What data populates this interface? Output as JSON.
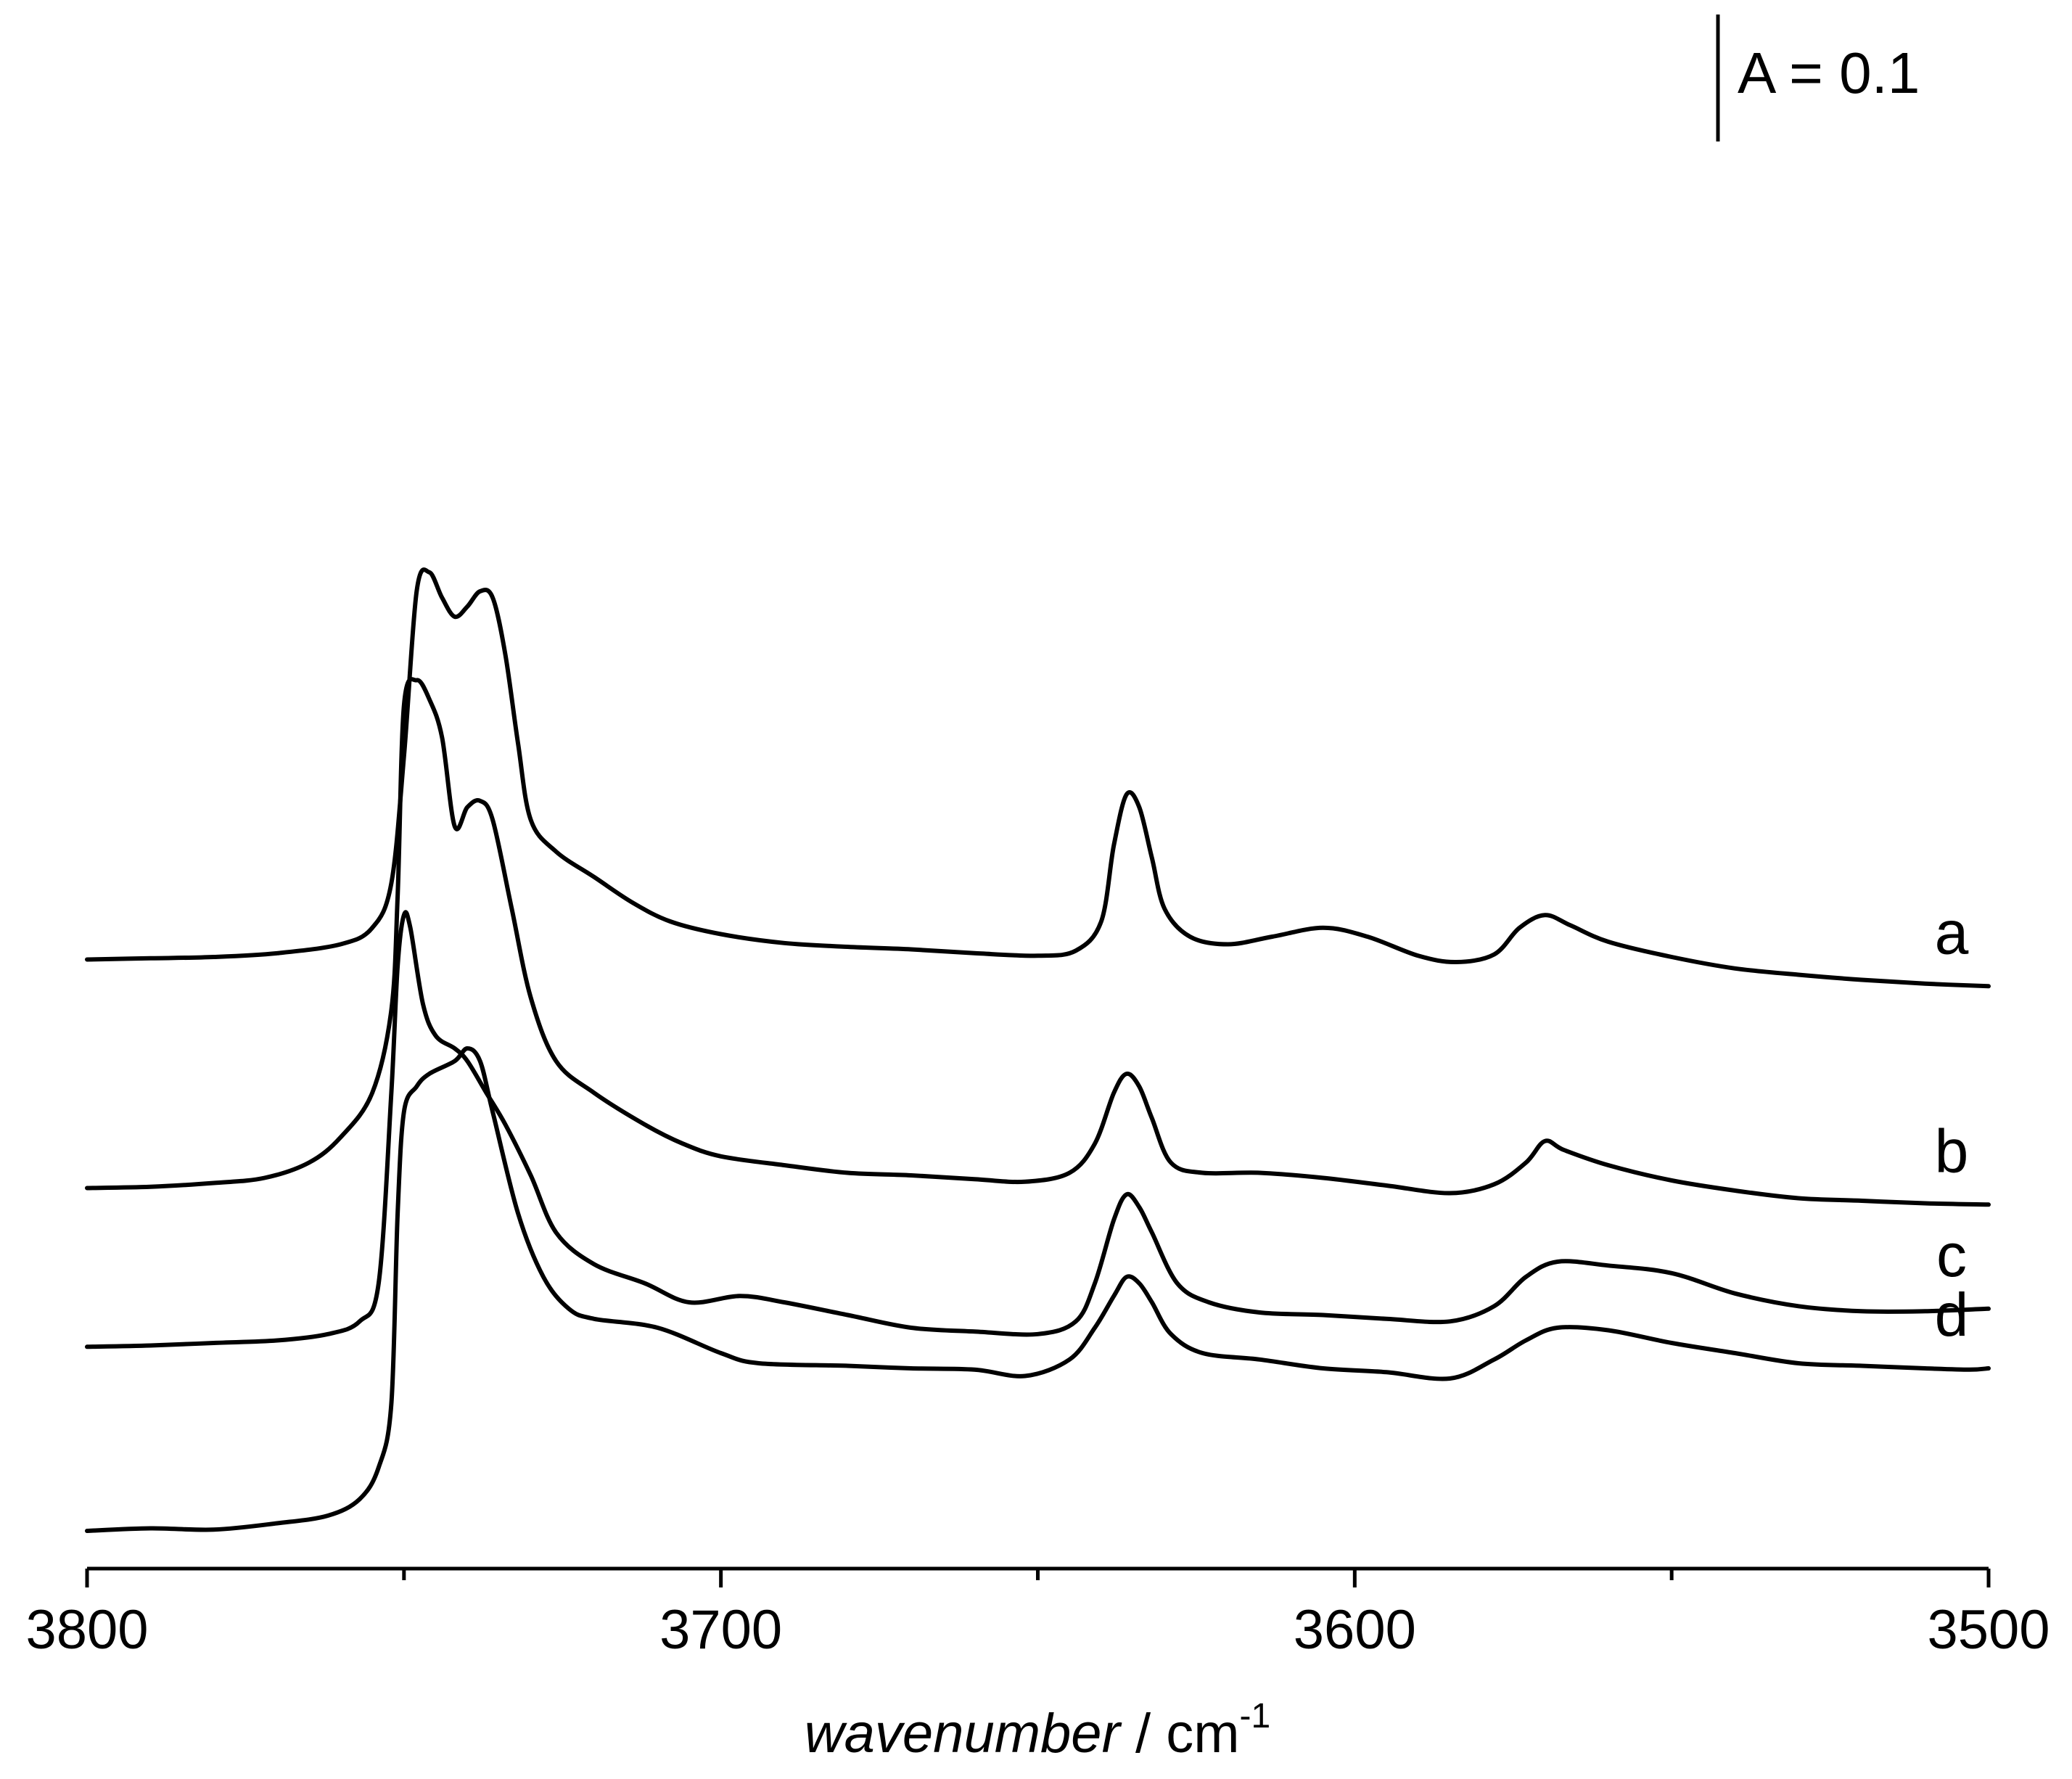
{
  "chart_data": {
    "type": "line",
    "title": "",
    "xlabel_italic": "wavenumber",
    "xlabel_unit": " / cm",
    "xlabel_sup": "-1",
    "ylabel": "",
    "xlim": [
      3800,
      3500
    ],
    "x_reversed": true,
    "x_ticks_major": [
      3800,
      3700,
      3600,
      3500
    ],
    "x_ticks_major_labels": [
      "3800",
      "3700",
      "3600",
      "3500"
    ],
    "x_ticks_minor": [
      3750,
      3650,
      3550
    ],
    "grid": false,
    "scale_bar": {
      "label": "A = 0.1",
      "absorbance": 0.1
    },
    "y_units_note": "absorbance, stacked with offsets",
    "series": [
      {
        "name": "a",
        "offset": 0.45,
        "points": [
          [
            3800,
            0.0
          ],
          [
            3790,
            0.001
          ],
          [
            3780,
            0.002
          ],
          [
            3770,
            0.005
          ],
          [
            3760,
            0.012
          ],
          [
            3755,
            0.025
          ],
          [
            3752,
            0.06
          ],
          [
            3750,
            0.16
          ],
          [
            3748,
            0.29
          ],
          [
            3746,
            0.305
          ],
          [
            3744,
            0.285
          ],
          [
            3742,
            0.27
          ],
          [
            3740,
            0.278
          ],
          [
            3738,
            0.29
          ],
          [
            3736,
            0.285
          ],
          [
            3734,
            0.24
          ],
          [
            3732,
            0.17
          ],
          [
            3730,
            0.11
          ],
          [
            3726,
            0.085
          ],
          [
            3720,
            0.065
          ],
          [
            3714,
            0.045
          ],
          [
            3708,
            0.03
          ],
          [
            3700,
            0.02
          ],
          [
            3690,
            0.013
          ],
          [
            3680,
            0.01
          ],
          [
            3670,
            0.008
          ],
          [
            3660,
            0.005
          ],
          [
            3650,
            0.003
          ],
          [
            3644,
            0.007
          ],
          [
            3640,
            0.03
          ],
          [
            3638,
            0.09
          ],
          [
            3636,
            0.13
          ],
          [
            3634,
            0.12
          ],
          [
            3632,
            0.08
          ],
          [
            3630,
            0.04
          ],
          [
            3626,
            0.018
          ],
          [
            3620,
            0.012
          ],
          [
            3613,
            0.018
          ],
          [
            3605,
            0.025
          ],
          [
            3598,
            0.018
          ],
          [
            3590,
            0.003
          ],
          [
            3584,
            -0.002
          ],
          [
            3578,
            0.004
          ],
          [
            3574,
            0.025
          ],
          [
            3570,
            0.035
          ],
          [
            3566,
            0.027
          ],
          [
            3560,
            0.014
          ],
          [
            3550,
            0.002
          ],
          [
            3540,
            -0.007
          ],
          [
            3530,
            -0.012
          ],
          [
            3520,
            -0.016
          ],
          [
            3510,
            -0.019
          ],
          [
            3500,
            -0.021
          ]
        ]
      },
      {
        "name": "b",
        "offset": 0.27,
        "points": [
          [
            3800,
            0.0
          ],
          [
            3790,
            0.001
          ],
          [
            3780,
            0.004
          ],
          [
            3772,
            0.008
          ],
          [
            3765,
            0.02
          ],
          [
            3760,
            0.04
          ],
          [
            3755,
            0.075
          ],
          [
            3752,
            0.14
          ],
          [
            3751,
            0.23
          ],
          [
            3750,
            0.38
          ],
          [
            3748,
            0.4
          ],
          [
            3746,
            0.385
          ],
          [
            3744,
            0.355
          ],
          [
            3742,
            0.285
          ],
          [
            3740,
            0.3
          ],
          [
            3738,
            0.305
          ],
          [
            3736,
            0.29
          ],
          [
            3733,
            0.22
          ],
          [
            3730,
            0.15
          ],
          [
            3726,
            0.1
          ],
          [
            3720,
            0.075
          ],
          [
            3712,
            0.05
          ],
          [
            3706,
            0.035
          ],
          [
            3700,
            0.025
          ],
          [
            3690,
            0.018
          ],
          [
            3680,
            0.012
          ],
          [
            3670,
            0.01
          ],
          [
            3660,
            0.007
          ],
          [
            3652,
            0.005
          ],
          [
            3645,
            0.012
          ],
          [
            3641,
            0.035
          ],
          [
            3638,
            0.075
          ],
          [
            3636,
            0.09
          ],
          [
            3634,
            0.08
          ],
          [
            3632,
            0.055
          ],
          [
            3629,
            0.02
          ],
          [
            3624,
            0.012
          ],
          [
            3615,
            0.012
          ],
          [
            3605,
            0.008
          ],
          [
            3595,
            0.002
          ],
          [
            3585,
            -0.004
          ],
          [
            3578,
            0.003
          ],
          [
            3573,
            0.02
          ],
          [
            3570,
            0.037
          ],
          [
            3567,
            0.03
          ],
          [
            3560,
            0.018
          ],
          [
            3550,
            0.006
          ],
          [
            3540,
            -0.002
          ],
          [
            3530,
            -0.008
          ],
          [
            3520,
            -0.01
          ],
          [
            3510,
            -0.012
          ],
          [
            3500,
            -0.013
          ]
        ]
      },
      {
        "name": "c",
        "offset": 0.145,
        "points": [
          [
            3800,
            0.0
          ],
          [
            3790,
            0.001
          ],
          [
            3780,
            0.003
          ],
          [
            3770,
            0.005
          ],
          [
            3762,
            0.01
          ],
          [
            3757,
            0.02
          ],
          [
            3754,
            0.05
          ],
          [
            3752,
            0.2
          ],
          [
            3751,
            0.3
          ],
          [
            3750,
            0.34
          ],
          [
            3749,
            0.33
          ],
          [
            3747,
            0.27
          ],
          [
            3745,
            0.245
          ],
          [
            3742,
            0.235
          ],
          [
            3740,
            0.225
          ],
          [
            3737,
            0.2
          ],
          [
            3734,
            0.175
          ],
          [
            3730,
            0.135
          ],
          [
            3726,
            0.09
          ],
          [
            3720,
            0.065
          ],
          [
            3712,
            0.05
          ],
          [
            3705,
            0.035
          ],
          [
            3697,
            0.04
          ],
          [
            3690,
            0.035
          ],
          [
            3680,
            0.025
          ],
          [
            3670,
            0.015
          ],
          [
            3660,
            0.012
          ],
          [
            3650,
            0.01
          ],
          [
            3644,
            0.02
          ],
          [
            3641,
            0.05
          ],
          [
            3638,
            0.1
          ],
          [
            3636,
            0.12
          ],
          [
            3634,
            0.11
          ],
          [
            3632,
            0.09
          ],
          [
            3628,
            0.05
          ],
          [
            3623,
            0.035
          ],
          [
            3615,
            0.027
          ],
          [
            3605,
            0.025
          ],
          [
            3595,
            0.022
          ],
          [
            3585,
            0.02
          ],
          [
            3578,
            0.032
          ],
          [
            3573,
            0.055
          ],
          [
            3568,
            0.067
          ],
          [
            3560,
            0.064
          ],
          [
            3550,
            0.058
          ],
          [
            3540,
            0.042
          ],
          [
            3530,
            0.032
          ],
          [
            3520,
            0.028
          ],
          [
            3510,
            0.028
          ],
          [
            3500,
            0.03
          ]
        ]
      },
      {
        "name": "d",
        "offset": 0.0,
        "points": [
          [
            3800,
            0.0
          ],
          [
            3790,
            0.002
          ],
          [
            3780,
            0.001
          ],
          [
            3770,
            0.006
          ],
          [
            3762,
            0.012
          ],
          [
            3757,
            0.025
          ],
          [
            3754,
            0.05
          ],
          [
            3752,
            0.1
          ],
          [
            3751,
            0.25
          ],
          [
            3750,
            0.33
          ],
          [
            3748,
            0.35
          ],
          [
            3746,
            0.36
          ],
          [
            3742,
            0.37
          ],
          [
            3740,
            0.38
          ],
          [
            3738,
            0.37
          ],
          [
            3736,
            0.33
          ],
          [
            3732,
            0.25
          ],
          [
            3728,
            0.2
          ],
          [
            3724,
            0.175
          ],
          [
            3720,
            0.167
          ],
          [
            3710,
            0.16
          ],
          [
            3700,
            0.14
          ],
          [
            3694,
            0.132
          ],
          [
            3680,
            0.13
          ],
          [
            3670,
            0.128
          ],
          [
            3660,
            0.127
          ],
          [
            3652,
            0.122
          ],
          [
            3645,
            0.135
          ],
          [
            3641,
            0.16
          ],
          [
            3638,
            0.185
          ],
          [
            3636,
            0.2
          ],
          [
            3634,
            0.195
          ],
          [
            3632,
            0.18
          ],
          [
            3629,
            0.155
          ],
          [
            3624,
            0.14
          ],
          [
            3615,
            0.135
          ],
          [
            3605,
            0.128
          ],
          [
            3595,
            0.125
          ],
          [
            3585,
            0.12
          ],
          [
            3578,
            0.135
          ],
          [
            3573,
            0.15
          ],
          [
            3568,
            0.16
          ],
          [
            3560,
            0.158
          ],
          [
            3550,
            0.148
          ],
          [
            3540,
            0.14
          ],
          [
            3530,
            0.132
          ],
          [
            3520,
            0.13
          ],
          [
            3510,
            0.128
          ],
          [
            3503,
            0.127
          ],
          [
            3500,
            0.128
          ]
        ]
      }
    ]
  }
}
